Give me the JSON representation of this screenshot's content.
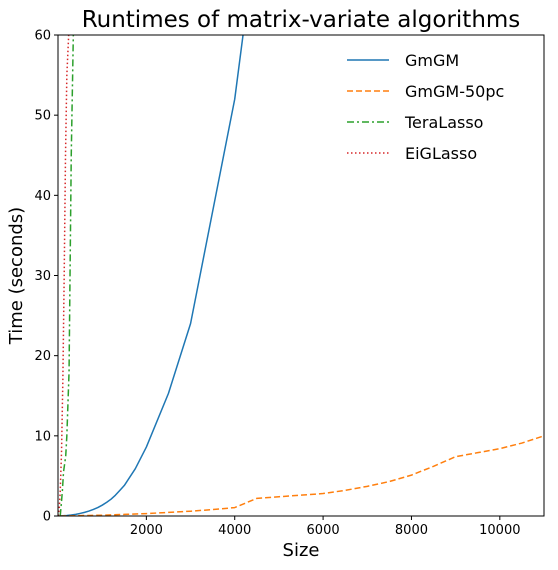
{
  "chart_data": {
    "type": "line",
    "title": "Runtimes of matrix-variate algorithms",
    "xlabel": "Size",
    "ylabel": "Time (seconds)",
    "xlim": [
      0,
      11000
    ],
    "ylim": [
      0,
      60
    ],
    "xticks": [
      2000,
      4000,
      6000,
      8000,
      10000
    ],
    "yticks": [
      0,
      10,
      20,
      30,
      40,
      50,
      60
    ],
    "grid": false,
    "legend_position": "top-right",
    "series": [
      {
        "name": "GmGM",
        "color": "#1f77b4",
        "dash": "solid",
        "x": [
          50,
          100,
          200,
          300,
          400,
          500,
          600,
          700,
          800,
          900,
          1000,
          1100,
          1200,
          1300,
          1400,
          1500,
          1750,
          2000,
          2500,
          3000,
          3500,
          4000,
          4200
        ],
        "y": [
          0.01,
          0.03,
          0.06,
          0.12,
          0.2,
          0.32,
          0.45,
          0.62,
          0.82,
          1.05,
          1.35,
          1.7,
          2.1,
          2.6,
          3.2,
          3.8,
          5.9,
          8.6,
          15.3,
          24.0,
          38.0,
          52.0,
          60.5
        ]
      },
      {
        "name": "GmGM-50pc",
        "color": "#ff7f0e",
        "dash": "dashed",
        "x": [
          50,
          500,
          1000,
          1500,
          2000,
          2500,
          3000,
          3500,
          4000,
          4500,
          5000,
          5500,
          6000,
          6500,
          7000,
          7500,
          8000,
          8500,
          9000,
          9500,
          10000,
          10500,
          11000
        ],
        "y": [
          0.0,
          0.05,
          0.1,
          0.2,
          0.3,
          0.45,
          0.6,
          0.8,
          1.05,
          2.2,
          2.4,
          2.6,
          2.8,
          3.2,
          3.7,
          4.3,
          5.1,
          6.2,
          7.4,
          7.9,
          8.4,
          9.1,
          10.0
        ]
      },
      {
        "name": "TeraLasso",
        "color": "#2ca02c",
        "dash": "dashdot",
        "x": [
          50,
          75,
          100,
          125,
          150,
          175,
          200,
          250,
          300,
          350
        ],
        "y": [
          0.0,
          1.5,
          3.2,
          5.5,
          6.5,
          7.5,
          10.0,
          18.0,
          45.0,
          61.0
        ]
      },
      {
        "name": "EiGLasso",
        "color": "#d62728",
        "dash": "dotted",
        "x": [
          10,
          30,
          50,
          80,
          110,
          140,
          170,
          200,
          250
        ],
        "y": [
          0.0,
          1.0,
          3.0,
          8.0,
          17.0,
          30.0,
          45.0,
          55.0,
          61.0
        ]
      }
    ]
  }
}
